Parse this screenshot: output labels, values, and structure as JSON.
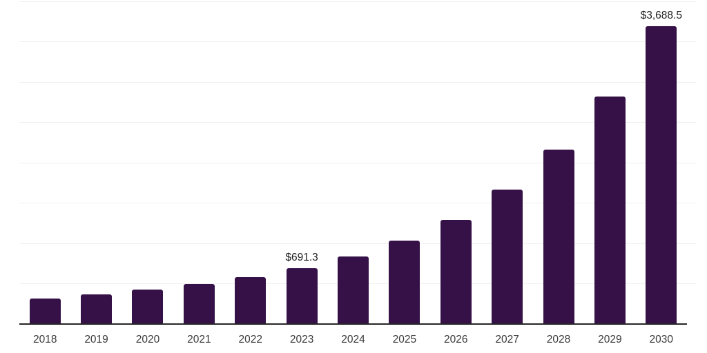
{
  "chart_data": {
    "type": "bar",
    "title": "",
    "xlabel": "",
    "ylabel": "",
    "categories": [
      "2018",
      "2019",
      "2020",
      "2021",
      "2022",
      "2023",
      "2024",
      "2025",
      "2026",
      "2027",
      "2028",
      "2029",
      "2030"
    ],
    "values": [
      316,
      368,
      428,
      500,
      582,
      691.3,
      838,
      1033,
      1290,
      1663,
      2159,
      2818,
      3688.5
    ],
    "data_labels": [
      "",
      "",
      "",
      "",
      "",
      "$691.3",
      "",
      "",
      "",
      "",
      "",
      "",
      "$3,688.5"
    ],
    "ylim": [
      0,
      4000
    ],
    "gridline_step": 500,
    "grid": true,
    "legend": false,
    "colors": {
      "bar": "#351148",
      "axis_line": "#262626",
      "gridline": "#efefef",
      "tick_label": "#3a3a3a",
      "data_label": "#1f1f1f",
      "background": "#ffffff"
    }
  }
}
